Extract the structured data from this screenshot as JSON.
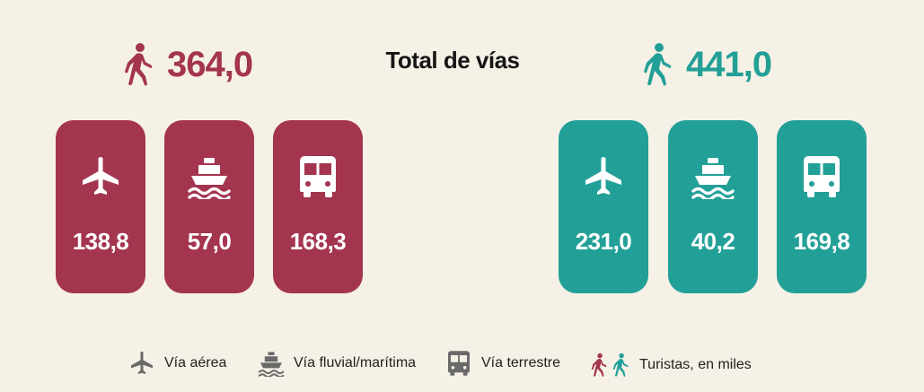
{
  "title": "Total de vías",
  "colors": {
    "left": "#a4354f",
    "right": "#22a098",
    "legend_icon": "#6a6a6a"
  },
  "chart_data": {
    "type": "table",
    "title": "Total de vías",
    "unit": "Turistas, en miles",
    "categories": [
      "Vía aérea",
      "Vía fluvial/marítima",
      "Vía terrestre"
    ],
    "series": [
      {
        "color": "#a4354f",
        "total": "364,0",
        "values": [
          "138,8",
          "57,0",
          "168,3"
        ]
      },
      {
        "color": "#22a098",
        "total": "441,0",
        "values": [
          "231,0",
          "40,2",
          "169,8"
        ]
      }
    ]
  },
  "legend": [
    {
      "icon": "airplane-icon",
      "label": "Vía aérea"
    },
    {
      "icon": "ship-icon",
      "label": "Vía fluvial/marítima"
    },
    {
      "icon": "bus-icon",
      "label": "Vía terrestre"
    },
    {
      "icon": "walking-person-icon",
      "label": "Turistas, en miles"
    }
  ]
}
